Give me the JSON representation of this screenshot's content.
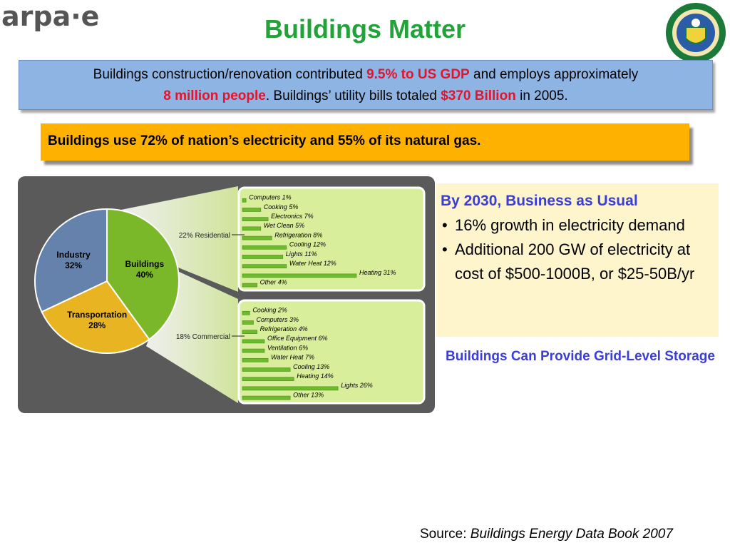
{
  "header": {
    "logo_text": "arpa·e",
    "title": "Buildings Matter",
    "seal_text": "DEPARTMENT OF ENERGY · UNITED STATES OF AMERICA"
  },
  "banner": {
    "part1": "Buildings construction/renovation contributed ",
    "highlight1": "9.5% to US GDP",
    "part2": " and employs approximately",
    "highlight2": "8 million people",
    "part3": ". Buildings’ utility bills totaled ",
    "highlight3": "$370 Billion",
    "part4": " in 2005."
  },
  "callout": {
    "text": "Buildings use 72% of nation’s electricity and 55% of its natural gas."
  },
  "forecast": {
    "heading": "By 2030, Business as Usual",
    "bullets": [
      "16% growth in electricity demand",
      "Additional 200 GW of electricity at cost of $500-1000B, or $25-50B/yr"
    ],
    "storage_note": "Buildings Can Provide Grid-Level Storage"
  },
  "source": {
    "label": "Source: ",
    "citation": "Buildings Energy Data Book 2007"
  },
  "colors": {
    "title_green": "#21a33a",
    "highlight_red": "#e3142b",
    "banner_blue": "#8eb4e3",
    "callout_orange": "#ffb100",
    "heading_blue": "#3b3dd8",
    "buildings_green": "#7ab82a",
    "industry_blue": "#6482ac",
    "transport_yellow": "#e8b422",
    "bar_green": "#6dbb2d"
  },
  "chart_data": [
    {
      "type": "pie",
      "slices": [
        {
          "name": "Buildings",
          "label": "Buildings",
          "value": 40,
          "value_label": "40%",
          "color": "#7ab82a"
        },
        {
          "name": "Transportation",
          "label": "Transportation",
          "value": 28,
          "value_label": "28%",
          "color": "#e8b422"
        },
        {
          "name": "Industry",
          "label": "Industry",
          "value": 32,
          "value_label": "32%",
          "color": "#6482ac"
        }
      ]
    },
    {
      "type": "bar",
      "group_label": "22% Residential",
      "categories": [
        "Computers",
        "Cooking",
        "Electronics",
        "Wet Clean",
        "Refrigeration",
        "Cooling",
        "Lights",
        "Water Heat",
        "Heating",
        "Other"
      ],
      "values": [
        1,
        5,
        7,
        5,
        8,
        12,
        11,
        12,
        31,
        4
      ],
      "labels": [
        "Computers 1%",
        "Cooking 5%",
        "Electronics 7%",
        "Wet Clean 5%",
        "Refrigeration 8%",
        "Cooling 12%",
        "Lights 11%",
        "Water Heat 12%",
        "Heating 31%",
        "Other 4%"
      ]
    },
    {
      "type": "bar",
      "group_label": "18% Commercial",
      "categories": [
        "Cooking",
        "Computers",
        "Refrigeration",
        "Office Equipment",
        "Ventilation",
        "Water Heat",
        "Cooling",
        "Heating",
        "Lights",
        "Other"
      ],
      "values": [
        2,
        3,
        4,
        6,
        6,
        7,
        13,
        14,
        26,
        13
      ],
      "labels": [
        "Cooking 2%",
        "Computers 3%",
        "Refrigeration 4%",
        "Office Equipment 6%",
        "Ventilation 6%",
        "Water Heat 7%",
        "Cooling 13%",
        "Heating 14%",
        "Lights 26%",
        "Other 13%"
      ]
    }
  ]
}
